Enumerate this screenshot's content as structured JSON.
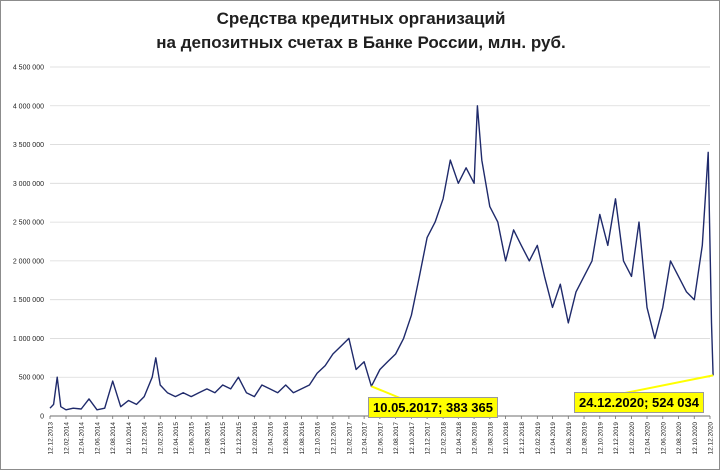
{
  "chart_data": {
    "type": "line",
    "title_line1": "Средства кредитных организаций",
    "title_line2": "на депозитных счетах в Банке России, млн. руб.",
    "ylim": [
      0,
      4500000
    ],
    "y_ticks": [
      "0",
      "500 000",
      "1 000 000",
      "1 500 000",
      "2 000 000",
      "2 500 000",
      "3 000 000",
      "3 500 000",
      "4 000 000",
      "4 500 000"
    ],
    "x_ticks": [
      "12.12.2013",
      "12.02.2014",
      "12.04.2014",
      "12.06.2014",
      "12.08.2014",
      "12.10.2014",
      "12.12.2014",
      "12.02.2015",
      "12.04.2015",
      "12.06.2015",
      "12.08.2015",
      "12.10.2015",
      "12.12.2015",
      "12.02.2016",
      "12.04.2016",
      "12.06.2016",
      "12.08.2016",
      "12.10.2016",
      "12.12.2016",
      "12.02.2017",
      "12.04.2017",
      "12.06.2017",
      "12.08.2017",
      "12.10.2017",
      "12.12.2017",
      "12.02.2018",
      "12.04.2018",
      "12.06.2018",
      "12.08.2018",
      "12.10.2018",
      "12.12.2018",
      "12.02.2019",
      "12.04.2019",
      "12.06.2019",
      "12.08.2019",
      "12.10.2019",
      "12.12.2019",
      "12.02.2020",
      "12.04.2020",
      "12.06.2020",
      "12.08.2020",
      "12.10.2020",
      "12.12.2020"
    ],
    "series": [
      {
        "color": "#1f2a6b",
        "values": [
          [
            "2013-12-12",
            100000
          ],
          [
            "2013-12-26",
            150000
          ],
          [
            "2014-01-09",
            500000
          ],
          [
            "2014-01-23",
            120000
          ],
          [
            "2014-02-12",
            80000
          ],
          [
            "2014-03-12",
            100000
          ],
          [
            "2014-04-12",
            90000
          ],
          [
            "2014-05-12",
            220000
          ],
          [
            "2014-06-12",
            80000
          ],
          [
            "2014-07-12",
            100000
          ],
          [
            "2014-08-12",
            450000
          ],
          [
            "2014-09-12",
            120000
          ],
          [
            "2014-10-12",
            200000
          ],
          [
            "2014-11-12",
            150000
          ],
          [
            "2014-12-12",
            250000
          ],
          [
            "2015-01-12",
            500000
          ],
          [
            "2015-01-26",
            750000
          ],
          [
            "2015-02-12",
            400000
          ],
          [
            "2015-03-12",
            300000
          ],
          [
            "2015-04-12",
            250000
          ],
          [
            "2015-05-12",
            300000
          ],
          [
            "2015-06-12",
            250000
          ],
          [
            "2015-07-12",
            300000
          ],
          [
            "2015-08-12",
            350000
          ],
          [
            "2015-09-12",
            300000
          ],
          [
            "2015-10-12",
            400000
          ],
          [
            "2015-11-12",
            350000
          ],
          [
            "2015-12-12",
            500000
          ],
          [
            "2016-01-12",
            300000
          ],
          [
            "2016-02-12",
            250000
          ],
          [
            "2016-03-12",
            400000
          ],
          [
            "2016-04-12",
            350000
          ],
          [
            "2016-05-12",
            300000
          ],
          [
            "2016-06-12",
            400000
          ],
          [
            "2016-07-12",
            300000
          ],
          [
            "2016-08-12",
            350000
          ],
          [
            "2016-09-12",
            400000
          ],
          [
            "2016-10-12",
            550000
          ],
          [
            "2016-11-12",
            650000
          ],
          [
            "2016-12-12",
            800000
          ],
          [
            "2017-01-12",
            900000
          ],
          [
            "2017-02-12",
            1000000
          ],
          [
            "2017-03-12",
            600000
          ],
          [
            "2017-04-12",
            700000
          ],
          [
            "2017-05-10",
            383365
          ],
          [
            "2017-06-12",
            600000
          ],
          [
            "2017-07-12",
            700000
          ],
          [
            "2017-08-12",
            800000
          ],
          [
            "2017-09-12",
            1000000
          ],
          [
            "2017-10-12",
            1300000
          ],
          [
            "2017-11-12",
            1800000
          ],
          [
            "2017-12-12",
            2300000
          ],
          [
            "2018-01-12",
            2500000
          ],
          [
            "2018-02-12",
            2800000
          ],
          [
            "2018-03-12",
            3300000
          ],
          [
            "2018-04-12",
            3000000
          ],
          [
            "2018-05-12",
            3200000
          ],
          [
            "2018-06-12",
            3000000
          ],
          [
            "2018-06-25",
            4000000
          ],
          [
            "2018-07-12",
            3300000
          ],
          [
            "2018-08-12",
            2700000
          ],
          [
            "2018-09-12",
            2500000
          ],
          [
            "2018-10-12",
            2000000
          ],
          [
            "2018-11-12",
            2400000
          ],
          [
            "2018-12-12",
            2200000
          ],
          [
            "2019-01-12",
            2000000
          ],
          [
            "2019-02-12",
            2200000
          ],
          [
            "2019-03-12",
            1800000
          ],
          [
            "2019-04-12",
            1400000
          ],
          [
            "2019-05-12",
            1700000
          ],
          [
            "2019-06-12",
            1200000
          ],
          [
            "2019-07-12",
            1600000
          ],
          [
            "2019-08-12",
            1800000
          ],
          [
            "2019-09-12",
            2000000
          ],
          [
            "2019-10-12",
            2600000
          ],
          [
            "2019-11-12",
            2200000
          ],
          [
            "2019-12-12",
            2800000
          ],
          [
            "2020-01-12",
            2000000
          ],
          [
            "2020-02-12",
            1800000
          ],
          [
            "2020-03-12",
            2500000
          ],
          [
            "2020-04-12",
            1400000
          ],
          [
            "2020-05-12",
            1000000
          ],
          [
            "2020-06-12",
            1400000
          ],
          [
            "2020-07-12",
            2000000
          ],
          [
            "2020-08-12",
            1800000
          ],
          [
            "2020-09-12",
            1600000
          ],
          [
            "2020-10-12",
            1500000
          ],
          [
            "2020-11-12",
            2200000
          ],
          [
            "2020-12-05",
            3400000
          ],
          [
            "2020-12-18",
            1200000
          ],
          [
            "2020-12-24",
            524034
          ]
        ]
      }
    ],
    "annotations": [
      {
        "text": "10.05.2017; 383 365",
        "x": "2017-05-10",
        "y": 383365
      },
      {
        "text": "24.12.2020; 524 034",
        "x": "2020-12-24",
        "y": 524034
      }
    ],
    "grid": true
  }
}
